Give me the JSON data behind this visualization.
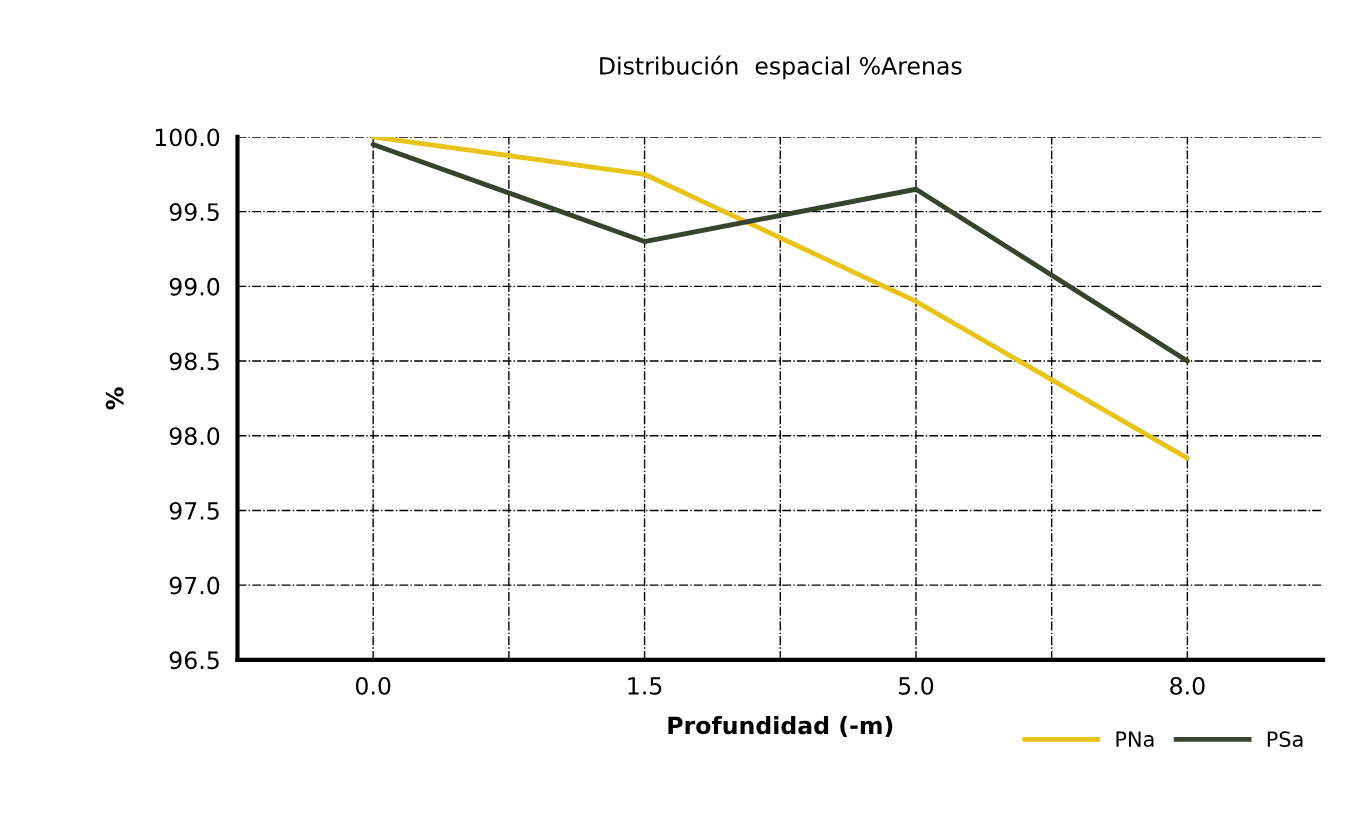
{
  "chart_data": {
    "type": "line",
    "title": "Distribución  espacial %Arenas",
    "xlabel": "Profundidad (-m)",
    "ylabel": "%",
    "categories": [
      "0.0",
      "1.5",
      "5.0",
      "8.0"
    ],
    "series": [
      {
        "name": "PNa",
        "color": "#e8c41a",
        "values": [
          100.0,
          99.75,
          98.9,
          97.85
        ]
      },
      {
        "name": "PSa",
        "color": "#37432f",
        "values": [
          99.95,
          99.3,
          99.65,
          98.5
        ]
      }
    ],
    "ylim": [
      96.5,
      100.0
    ],
    "yticks": [
      {
        "value": 96.5,
        "label": "96.5"
      },
      {
        "value": 97.0,
        "label": "97.0"
      },
      {
        "value": 97.5,
        "label": "97.5"
      },
      {
        "value": 98.0,
        "label": "98.0"
      },
      {
        "value": 98.5,
        "label": "98.5"
      },
      {
        "value": 99.0,
        "label": "99.0"
      },
      {
        "value": 99.5,
        "label": "99.5"
      },
      {
        "value": 100.0,
        "label": "100.0"
      }
    ],
    "grid": true,
    "legend": "bottom right",
    "marker": "none",
    "line_style": "solid"
  }
}
